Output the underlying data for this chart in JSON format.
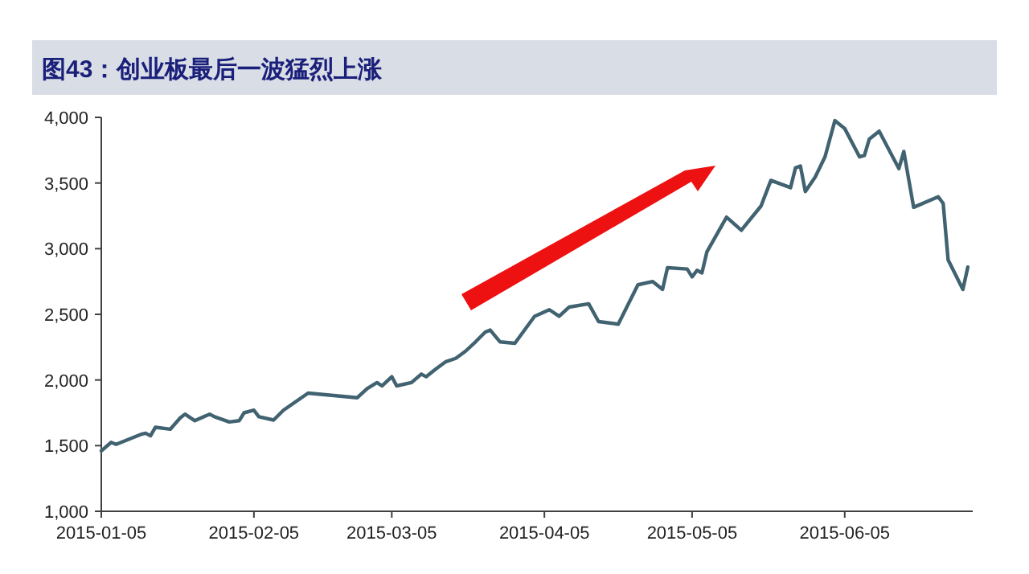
{
  "chart_data": {
    "type": "line",
    "title": "图43：创业板最后一波猛烈上涨",
    "x": [
      "2015-01-05",
      "2015-01-07",
      "2015-01-08",
      "2015-01-13",
      "2015-01-14",
      "2015-01-15",
      "2015-01-16",
      "2015-01-19",
      "2015-01-21",
      "2015-01-22",
      "2015-01-24",
      "2015-01-27",
      "2015-01-28",
      "2015-01-31",
      "2015-02-02",
      "2015-02-03",
      "2015-02-05",
      "2015-02-06",
      "2015-02-09",
      "2015-02-11",
      "2015-02-16",
      "2015-02-26",
      "2015-02-28",
      "2015-03-02",
      "2015-03-03",
      "2015-03-05",
      "2015-03-06",
      "2015-03-09",
      "2015-03-11",
      "2015-03-12",
      "2015-03-14",
      "2015-03-16",
      "2015-03-18",
      "2015-03-20",
      "2015-03-22",
      "2015-03-24",
      "2015-03-25",
      "2015-03-27",
      "2015-03-30",
      "2015-04-03",
      "2015-04-06",
      "2015-04-08",
      "2015-04-10",
      "2015-04-14",
      "2015-04-16",
      "2015-04-20",
      "2015-04-24",
      "2015-04-27",
      "2015-04-29",
      "2015-04-30",
      "2015-05-04",
      "2015-05-05",
      "2015-05-06",
      "2015-05-07",
      "2015-05-08",
      "2015-05-12",
      "2015-05-15",
      "2015-05-19",
      "2015-05-21",
      "2015-05-25",
      "2015-05-26",
      "2015-05-27",
      "2015-05-28",
      "2015-05-30",
      "2015-06-01",
      "2015-06-03",
      "2015-06-05",
      "2015-06-08",
      "2015-06-09",
      "2015-06-10",
      "2015-06-12",
      "2015-06-16",
      "2015-06-17",
      "2015-06-19",
      "2015-06-24",
      "2015-06-25",
      "2015-06-26",
      "2015-06-29",
      "2015-06-30"
    ],
    "series": [
      {
        "color": "#416270",
        "values": [
          1460,
          1525,
          1510,
          1585,
          1595,
          1575,
          1640,
          1625,
          1710,
          1740,
          1690,
          1740,
          1720,
          1680,
          1690,
          1750,
          1770,
          1720,
          1695,
          1770,
          1900,
          1865,
          1935,
          1980,
          1955,
          2025,
          1955,
          1980,
          2045,
          2025,
          2085,
          2140,
          2165,
          2220,
          2290,
          2365,
          2380,
          2290,
          2280,
          2485,
          2535,
          2485,
          2555,
          2580,
          2445,
          2425,
          2725,
          2750,
          2690,
          2855,
          2845,
          2785,
          2835,
          2815,
          2975,
          3240,
          3140,
          3325,
          3520,
          3465,
          3615,
          3630,
          3435,
          3545,
          3700,
          3975,
          3915,
          3700,
          3710,
          3835,
          3895,
          3610,
          3740,
          3315,
          3395,
          3345,
          2915,
          2690,
          2860
        ]
      }
    ],
    "xlim": [
      "2015-01-05",
      "2015-07-01"
    ],
    "xticks": [
      "2015-01-05",
      "2015-02-05",
      "2015-03-05",
      "2015-04-05",
      "2015-05-05",
      "2015-06-05"
    ],
    "ylim": [
      1000,
      4000
    ],
    "yticks": [
      {
        "value": 1000,
        "label": "1,000"
      },
      {
        "value": 1500,
        "label": "1,500"
      },
      {
        "value": 2000,
        "label": "2,000"
      },
      {
        "value": 2500,
        "label": "2,500"
      },
      {
        "value": 3000,
        "label": "3,000"
      },
      {
        "value": 3500,
        "label": "3,500"
      },
      {
        "value": 4000,
        "label": "4,000"
      }
    ],
    "grid": false,
    "marker": "none",
    "line_style": "solid"
  }
}
